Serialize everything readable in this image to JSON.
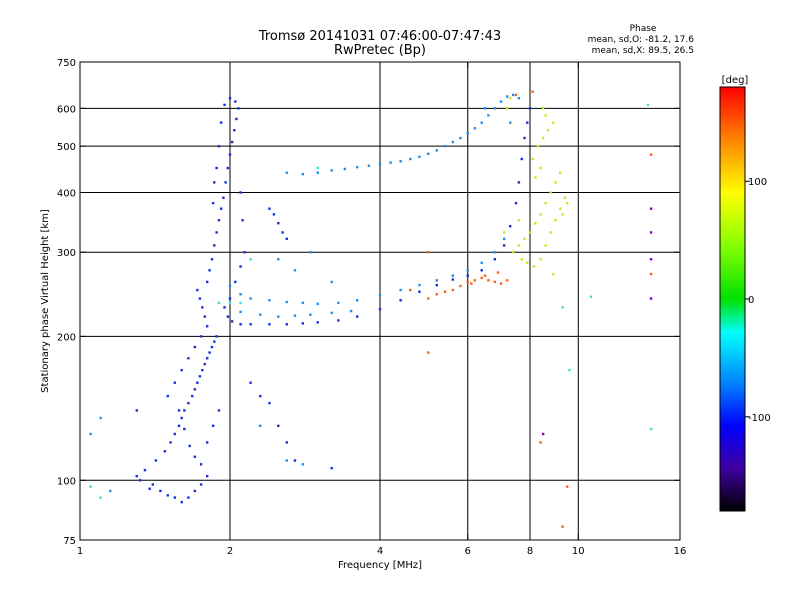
{
  "chart_data": {
    "type": "scatter",
    "title": "Tromsø 20141031 07:46:00-07:47:43",
    "subtitle": "RwPretec (Bp)",
    "stats": {
      "heading": "Phase",
      "line_o": "mean, sd,O: -81.2, 17.6",
      "line_x": "mean, sd,X: 89.5, 26.5"
    },
    "xlabel": "Frequency [MHz]",
    "ylabel": "Stationary phase Virtual Height [km]",
    "x_scale": "log",
    "y_scale": "log",
    "xlim": [
      1,
      16
    ],
    "ylim": [
      75,
      750
    ],
    "x_ticks": [
      1,
      2,
      4,
      6,
      8,
      10,
      16
    ],
    "x_tick_labels": [
      "1",
      "2",
      "4",
      "6",
      "8",
      "10",
      "16"
    ],
    "y_ticks": [
      75,
      100,
      200,
      300,
      400,
      500,
      600,
      750
    ],
    "y_tick_labels": [
      "75",
      "100",
      "200",
      "300",
      "400",
      "500",
      "600",
      "750"
    ],
    "grid_x": [
      2,
      4,
      6,
      8,
      10
    ],
    "grid_y": [
      100,
      200,
      300,
      400,
      500,
      600
    ],
    "grid": true,
    "colorbar": {
      "label": "[deg]",
      "range": [
        -180,
        180
      ],
      "ticks": [
        100,
        0,
        -100
      ],
      "tick_labels": [
        "100",
        "0",
        "-100"
      ]
    },
    "colors": {
      "o_mode": "#1530e0",
      "f_trace": "#2090f0",
      "x_trace": "#b8f020",
      "hot": "#ff6010",
      "background": "#ffffff"
    },
    "series": [
      {
        "color": "#1530e0",
        "points": [
          [
            1.35,
            105
          ],
          [
            1.3,
            102
          ],
          [
            1.32,
            100
          ],
          [
            1.4,
            98
          ],
          [
            1.38,
            96
          ],
          [
            1.45,
            95
          ],
          [
            1.5,
            93
          ],
          [
            1.55,
            92
          ],
          [
            1.6,
            90
          ],
          [
            1.65,
            92
          ],
          [
            1.7,
            95
          ],
          [
            1.75,
            98
          ],
          [
            1.8,
            102
          ],
          [
            1.42,
            110
          ],
          [
            1.48,
            115
          ],
          [
            1.52,
            120
          ],
          [
            1.55,
            125
          ],
          [
            1.58,
            130
          ],
          [
            1.6,
            135
          ],
          [
            1.62,
            140
          ],
          [
            1.65,
            145
          ],
          [
            1.68,
            150
          ],
          [
            1.7,
            155
          ],
          [
            1.72,
            160
          ],
          [
            1.74,
            165
          ],
          [
            1.76,
            170
          ],
          [
            1.78,
            175
          ],
          [
            1.8,
            180
          ],
          [
            1.82,
            185
          ],
          [
            1.84,
            190
          ],
          [
            1.86,
            195
          ],
          [
            1.88,
            200
          ],
          [
            1.5,
            150
          ],
          [
            1.55,
            160
          ],
          [
            1.6,
            170
          ],
          [
            1.65,
            180
          ],
          [
            1.58,
            140
          ],
          [
            1.62,
            128
          ],
          [
            1.66,
            118
          ],
          [
            1.7,
            112
          ],
          [
            1.75,
            108
          ],
          [
            1.8,
            120
          ],
          [
            1.85,
            130
          ],
          [
            1.9,
            140
          ],
          [
            1.7,
            190
          ],
          [
            1.75,
            200
          ],
          [
            1.8,
            210
          ],
          [
            1.78,
            220
          ],
          [
            1.76,
            230
          ],
          [
            1.74,
            240
          ],
          [
            1.72,
            250
          ],
          [
            1.8,
            260
          ],
          [
            1.82,
            275
          ],
          [
            1.84,
            290
          ],
          [
            1.86,
            310
          ],
          [
            1.88,
            330
          ],
          [
            1.9,
            350
          ],
          [
            1.92,
            370
          ],
          [
            1.94,
            390
          ],
          [
            1.96,
            420
          ],
          [
            1.98,
            450
          ],
          [
            2.0,
            480
          ],
          [
            2.02,
            510
          ],
          [
            2.04,
            540
          ],
          [
            2.06,
            570
          ],
          [
            2.08,
            600
          ],
          [
            2.05,
            620
          ],
          [
            2.0,
            630
          ],
          [
            1.95,
            610
          ],
          [
            1.92,
            560
          ],
          [
            1.9,
            500
          ],
          [
            1.88,
            450
          ],
          [
            1.86,
            420
          ],
          [
            1.85,
            380
          ],
          [
            2.1,
            400
          ],
          [
            2.12,
            350
          ],
          [
            2.14,
            300
          ],
          [
            2.1,
            280
          ],
          [
            2.05,
            260
          ],
          [
            2.0,
            240
          ],
          [
            1.95,
            230
          ],
          [
            1.98,
            220
          ],
          [
            2.02,
            215
          ],
          [
            2.1,
            212
          ],
          [
            2.2,
            212
          ],
          [
            2.4,
            212
          ],
          [
            2.6,
            212
          ],
          [
            2.8,
            213
          ],
          [
            3.0,
            214
          ],
          [
            3.3,
            216
          ],
          [
            3.6,
            220
          ],
          [
            4.0,
            228
          ],
          [
            4.4,
            238
          ],
          [
            4.8,
            248
          ],
          [
            5.2,
            256
          ],
          [
            5.6,
            263
          ],
          [
            6.0,
            268
          ],
          [
            6.4,
            275
          ],
          [
            6.8,
            290
          ],
          [
            7.1,
            310
          ],
          [
            7.3,
            340
          ],
          [
            7.5,
            380
          ],
          [
            7.6,
            420
          ],
          [
            7.7,
            470
          ],
          [
            7.8,
            520
          ],
          [
            7.9,
            560
          ],
          [
            8.0,
            600
          ],
          [
            2.45,
            360
          ],
          [
            2.5,
            345
          ],
          [
            2.55,
            330
          ],
          [
            2.6,
            320
          ],
          [
            2.4,
            370
          ],
          [
            1.3,
            140
          ],
          [
            2.3,
            150
          ],
          [
            2.4,
            145
          ],
          [
            2.5,
            130
          ],
          [
            2.6,
            120
          ],
          [
            2.7,
            110
          ],
          [
            2.2,
            160
          ],
          [
            3.2,
            106
          ]
        ]
      },
      {
        "color": "#2090f0",
        "points": [
          [
            2.6,
            440
          ],
          [
            2.8,
            437
          ],
          [
            3.0,
            440
          ],
          [
            3.2,
            445
          ],
          [
            3.4,
            448
          ],
          [
            3.6,
            452
          ],
          [
            3.8,
            455
          ],
          [
            4.0,
            458
          ],
          [
            4.2,
            462
          ],
          [
            4.4,
            465
          ],
          [
            4.6,
            470
          ],
          [
            4.8,
            475
          ],
          [
            5.0,
            482
          ],
          [
            5.2,
            490
          ],
          [
            5.4,
            500
          ],
          [
            5.6,
            510
          ],
          [
            5.8,
            520
          ],
          [
            6.0,
            532
          ],
          [
            6.2,
            545
          ],
          [
            6.4,
            560
          ],
          [
            6.6,
            580
          ],
          [
            6.8,
            600
          ],
          [
            7.0,
            620
          ],
          [
            7.2,
            635
          ],
          [
            7.4,
            640
          ],
          [
            7.6,
            630
          ],
          [
            2.0,
            255
          ],
          [
            2.1,
            245
          ],
          [
            2.2,
            240
          ],
          [
            2.4,
            238
          ],
          [
            2.6,
            236
          ],
          [
            2.8,
            235
          ],
          [
            3.0,
            234
          ],
          [
            3.3,
            235
          ],
          [
            3.6,
            238
          ],
          [
            4.0,
            244
          ],
          [
            4.4,
            250
          ],
          [
            4.8,
            256
          ],
          [
            5.2,
            262
          ],
          [
            5.6,
            268
          ],
          [
            6.0,
            275
          ],
          [
            6.4,
            285
          ],
          [
            6.8,
            300
          ],
          [
            7.1,
            320
          ],
          [
            2.1,
            225
          ],
          [
            2.3,
            222
          ],
          [
            2.5,
            220
          ],
          [
            2.7,
            221
          ],
          [
            2.9,
            222
          ],
          [
            3.2,
            224
          ],
          [
            3.5,
            226
          ],
          [
            2.5,
            290
          ],
          [
            2.7,
            275
          ],
          [
            3.2,
            260
          ],
          [
            2.9,
            300
          ],
          [
            1.1,
            135
          ],
          [
            1.05,
            125
          ],
          [
            1.15,
            95
          ],
          [
            2.3,
            130
          ],
          [
            2.6,
            110
          ],
          [
            2.8,
            108
          ],
          [
            6.5,
            600
          ],
          [
            7.3,
            560
          ]
        ]
      },
      {
        "color": "#b8f020",
        "points": [
          [
            7.4,
            300
          ],
          [
            7.6,
            310
          ],
          [
            7.8,
            320
          ],
          [
            8.0,
            330
          ],
          [
            8.2,
            345
          ],
          [
            8.4,
            360
          ],
          [
            8.6,
            380
          ],
          [
            8.8,
            400
          ],
          [
            9.0,
            420
          ],
          [
            9.2,
            440
          ],
          [
            8.1,
            470
          ],
          [
            8.3,
            500
          ],
          [
            8.5,
            520
          ],
          [
            8.7,
            540
          ],
          [
            8.9,
            560
          ],
          [
            7.7,
            290
          ],
          [
            7.9,
            285
          ],
          [
            8.15,
            280
          ],
          [
            8.4,
            290
          ],
          [
            8.6,
            310
          ],
          [
            8.8,
            330
          ],
          [
            9.0,
            350
          ],
          [
            9.2,
            370
          ],
          [
            9.4,
            390
          ],
          [
            8.2,
            430
          ],
          [
            8.4,
            450
          ],
          [
            7.3,
            630
          ],
          [
            7.2,
            600
          ],
          [
            8.6,
            580
          ],
          [
            8.5,
            600
          ],
          [
            7.1,
            330
          ],
          [
            7.6,
            350
          ],
          [
            8.9,
            270
          ],
          [
            9.3,
            360
          ],
          [
            9.5,
            380
          ]
        ]
      },
      {
        "color": "#ff6010",
        "points": [
          [
            5.6,
            250
          ],
          [
            5.8,
            255
          ],
          [
            6.0,
            260
          ],
          [
            6.2,
            262
          ],
          [
            6.4,
            265
          ],
          [
            6.6,
            262
          ],
          [
            6.8,
            260
          ],
          [
            7.0,
            258
          ],
          [
            7.2,
            262
          ],
          [
            5.4,
            248
          ],
          [
            5.2,
            245
          ],
          [
            6.1,
            258
          ],
          [
            6.5,
            268
          ],
          [
            6.9,
            272
          ],
          [
            5.0,
            240
          ],
          [
            4.6,
            250
          ],
          [
            7.5,
            640
          ],
          [
            8.1,
            650
          ],
          [
            9.5,
            97
          ],
          [
            9.3,
            80
          ],
          [
            8.4,
            120
          ],
          [
            5.0,
            185
          ],
          [
            5.0,
            300
          ],
          [
            14.0,
            480
          ],
          [
            14.0,
            270
          ]
        ]
      },
      {
        "color": "#40e0d0",
        "points": [
          [
            1.1,
            92
          ],
          [
            1.05,
            97
          ],
          [
            10.6,
            242
          ],
          [
            14.0,
            128
          ],
          [
            13.8,
            610
          ],
          [
            9.6,
            170
          ],
          [
            9.3,
            230
          ],
          [
            3.0,
            450
          ],
          [
            2.2,
            290
          ],
          [
            1.9,
            235
          ],
          [
            2.0,
            235
          ],
          [
            2.1,
            235
          ]
        ]
      },
      {
        "color": "#8000d0",
        "points": [
          [
            14.0,
            330
          ],
          [
            14.0,
            240
          ],
          [
            8.5,
            125
          ],
          [
            14.0,
            290
          ],
          [
            14.0,
            370
          ]
        ]
      }
    ]
  }
}
